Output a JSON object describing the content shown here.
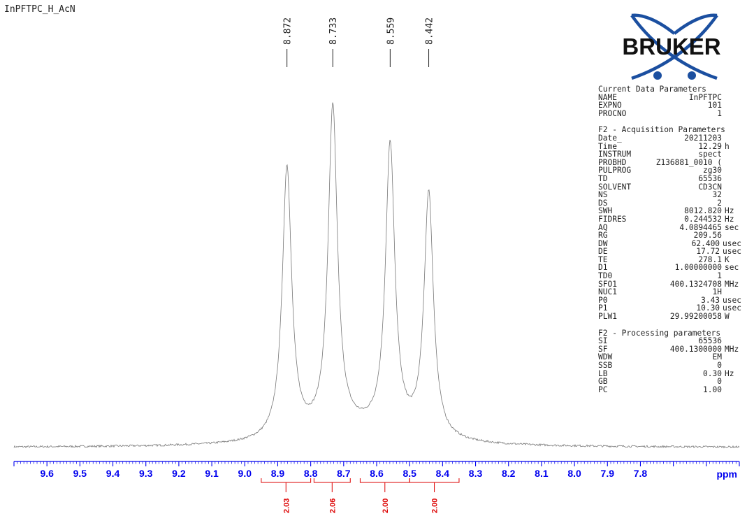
{
  "dataset_name": "InPFTPC_H_AcN",
  "logo_text": "BRUKER",
  "colors": {
    "axis": "#0000ee",
    "integral": "#dd0000",
    "spectrum": "#777777",
    "text": "#222222",
    "logo_blue": "#1b4fa0"
  },
  "parameter_sections": [
    {
      "title": "Current Data Parameters",
      "rows": [
        {
          "key": "NAME",
          "value": "InPFTPC",
          "unit": ""
        },
        {
          "key": "EXPNO",
          "value": "101",
          "unit": ""
        },
        {
          "key": "PROCNO",
          "value": "1",
          "unit": ""
        }
      ]
    },
    {
      "title": "F2 - Acquisition Parameters",
      "rows": [
        {
          "key": "Date_",
          "value": "20211203",
          "unit": ""
        },
        {
          "key": "Time",
          "value": "12.29",
          "unit": "h"
        },
        {
          "key": "INSTRUM",
          "value": "spect",
          "unit": ""
        },
        {
          "key": "PROBHD",
          "value": "Z136881_0010 (",
          "unit": ""
        },
        {
          "key": "PULPROG",
          "value": "zg30",
          "unit": ""
        },
        {
          "key": "TD",
          "value": "65536",
          "unit": ""
        },
        {
          "key": "SOLVENT",
          "value": "CD3CN",
          "unit": ""
        },
        {
          "key": "NS",
          "value": "32",
          "unit": ""
        },
        {
          "key": "DS",
          "value": "2",
          "unit": ""
        },
        {
          "key": "SWH",
          "value": "8012.820",
          "unit": "Hz"
        },
        {
          "key": "FIDRES",
          "value": "0.244532",
          "unit": "Hz"
        },
        {
          "key": "AQ",
          "value": "4.0894465",
          "unit": "sec"
        },
        {
          "key": "RG",
          "value": "209.56",
          "unit": ""
        },
        {
          "key": "DW",
          "value": "62.400",
          "unit": "usec"
        },
        {
          "key": "DE",
          "value": "17.72",
          "unit": "usec"
        },
        {
          "key": "TE",
          "value": "278.1",
          "unit": "K"
        },
        {
          "key": "D1",
          "value": "1.00000000",
          "unit": "sec"
        },
        {
          "key": "TD0",
          "value": "1",
          "unit": ""
        },
        {
          "key": "SFO1",
          "value": "400.1324708",
          "unit": "MHz"
        },
        {
          "key": "NUC1",
          "value": "1H",
          "unit": ""
        },
        {
          "key": "P0",
          "value": "3.43",
          "unit": "usec"
        },
        {
          "key": "P1",
          "value": "10.30",
          "unit": "usec"
        },
        {
          "key": "PLW1",
          "value": "29.99200058",
          "unit": "W"
        }
      ]
    },
    {
      "title": "F2 - Processing parameters",
      "rows": [
        {
          "key": "SI",
          "value": "65536",
          "unit": ""
        },
        {
          "key": "SF",
          "value": "400.1300000",
          "unit": "MHz"
        },
        {
          "key": "WDW",
          "value": "EM",
          "unit": ""
        },
        {
          "key": "SSB",
          "value": "0",
          "unit": ""
        },
        {
          "key": "LB",
          "value": "0.30",
          "unit": "Hz"
        },
        {
          "key": "GB",
          "value": "0",
          "unit": ""
        },
        {
          "key": "PC",
          "value": "1.00",
          "unit": ""
        }
      ]
    }
  ],
  "chart_data": {
    "type": "line",
    "x_axis": {
      "label": "ppm",
      "range": [
        9.7,
        7.5
      ],
      "reversed": true,
      "ticks": [
        9.6,
        9.5,
        9.4,
        9.3,
        9.2,
        9.1,
        9.0,
        8.9,
        8.8,
        8.7,
        8.6,
        8.5,
        8.4,
        8.3,
        8.2,
        8.1,
        8.0,
        7.9,
        7.8
      ],
      "tick_labels": [
        "9.6",
        "9.5",
        "9.4",
        "9.3",
        "9.2",
        "9.1",
        "9.0",
        "8.9",
        "8.8",
        "8.7",
        "8.6",
        "8.5",
        "8.4",
        "8.3",
        "8.2",
        "8.1",
        "8.0",
        "7.9",
        "7.8"
      ]
    },
    "peaks": [
      {
        "ppm": 8.872,
        "label": "8.872",
        "relative_height": 0.81
      },
      {
        "ppm": 8.733,
        "label": "8.733",
        "relative_height": 0.97
      },
      {
        "ppm": 8.559,
        "label": "8.559",
        "relative_height": 0.86
      },
      {
        "ppm": 8.442,
        "label": "8.442",
        "relative_height": 0.73
      }
    ],
    "integrals": [
      {
        "from": 8.95,
        "to": 8.8,
        "value": "2.03"
      },
      {
        "from": 8.79,
        "to": 8.68,
        "value": "2.06"
      },
      {
        "from": 8.65,
        "to": 8.5,
        "value": "2.00"
      },
      {
        "from": 8.5,
        "to": 8.35,
        "value": "2.00"
      }
    ]
  }
}
